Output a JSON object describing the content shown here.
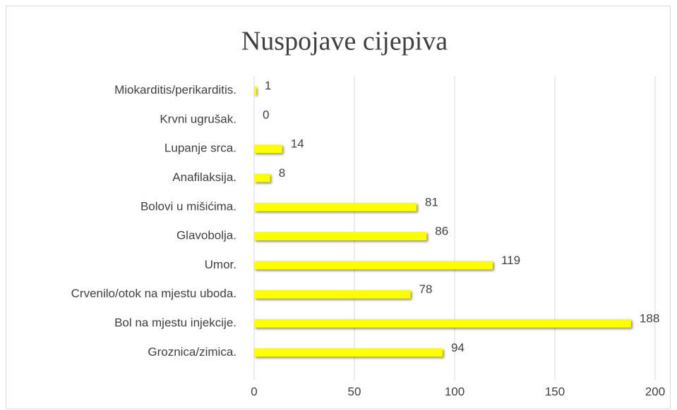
{
  "chart_data": {
    "type": "barh",
    "title": "Nuspojave cijepiva",
    "categories": [
      "Miokarditis/perikarditis.",
      "Krvni ugrušak.",
      "Lupanje srca.",
      "Anafilaksija.",
      "Bolovi u mišićima.",
      "Glavobolja.",
      "Umor.",
      "Crvenilo/otok na mjestu uboda.",
      "Bol na mjestu injekcije.",
      "Groznica/zimica."
    ],
    "values": [
      1,
      0,
      14,
      8,
      81,
      86,
      119,
      78,
      188,
      94
    ],
    "color": "#ffff00",
    "xlim": [
      0,
      200
    ],
    "xticks": [
      0,
      50,
      100,
      150,
      200
    ],
    "grid": true
  }
}
